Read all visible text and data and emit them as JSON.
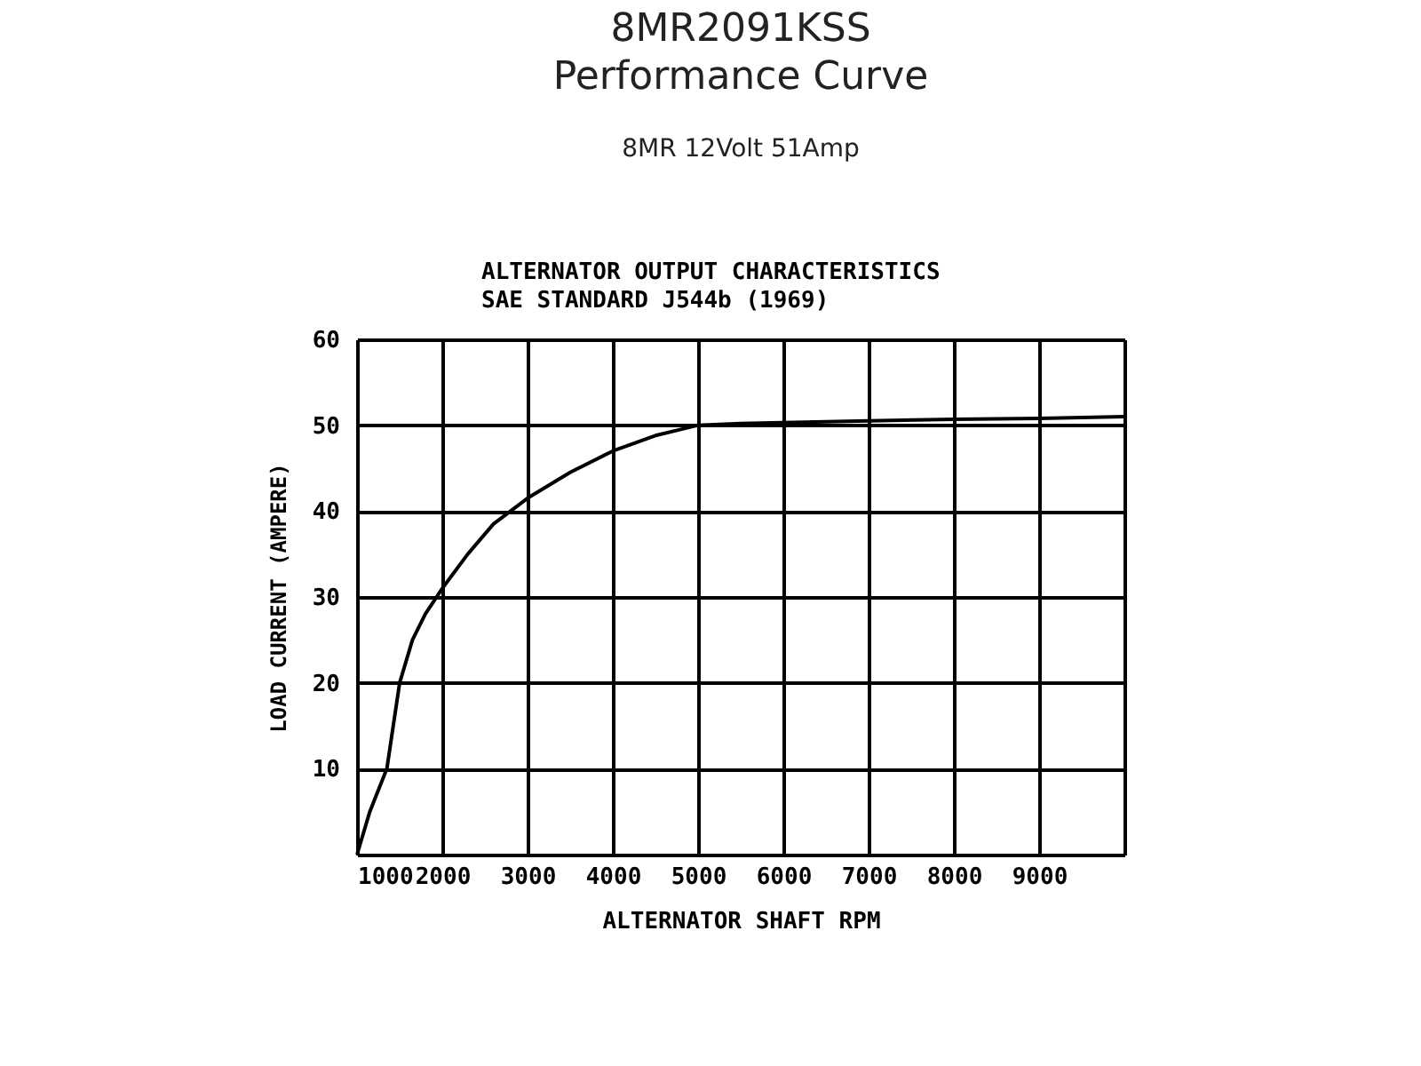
{
  "chart_data": {
    "type": "line",
    "title": [
      "8MR2091KSS",
      "Performance Curve"
    ],
    "subtitle": "8MR 12Volt 51Amp",
    "annotations": [
      "ALTERNATOR OUTPUT CHARACTERISTICS",
      "SAE STANDARD J544b (1969)"
    ],
    "xlabel": "ALTERNATOR SHAFT RPM",
    "ylabel": "LOAD CURRENT (AMPERE)",
    "x": [
      1000,
      1150,
      1350,
      1500,
      1650,
      1800,
      2000,
      2300,
      2600,
      3000,
      3500,
      4000,
      4500,
      5000,
      5500,
      6000,
      7000,
      8000,
      9000,
      10000
    ],
    "series": [
      {
        "color": "#000000",
        "values": [
          0,
          5,
          10,
          20,
          25,
          28,
          31,
          35,
          38.5,
          41.5,
          44.5,
          47,
          48.8,
          50,
          50.2,
          50.3,
          50.5,
          50.7,
          50.8,
          51
        ]
      }
    ],
    "xlim": [
      1000,
      10000
    ],
    "xticks": [
      1000,
      2000,
      3000,
      4000,
      5000,
      6000,
      7000,
      8000,
      9000,
      {
        "value": 10000,
        "label": null
      }
    ],
    "ylim": [
      0,
      60
    ],
    "yticks": [
      {
        "value": 0,
        "label": null
      },
      10,
      20,
      30,
      40,
      50,
      60
    ],
    "grid": true,
    "marker": "none",
    "line_style": "solid"
  }
}
